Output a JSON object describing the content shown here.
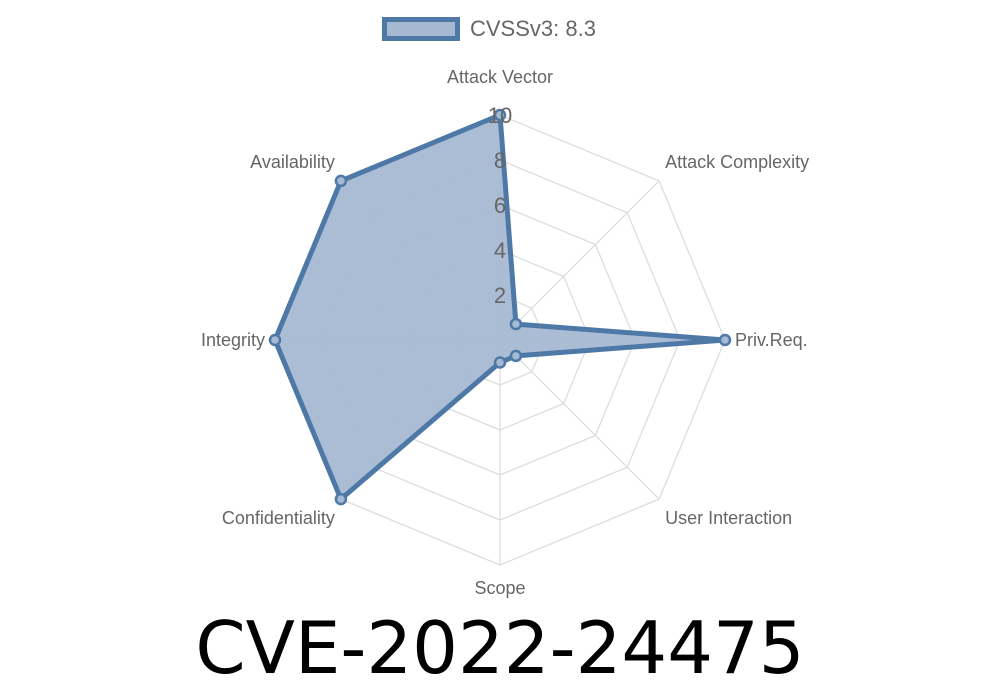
{
  "chart_data": {
    "type": "radar",
    "title": "CVE-2022-24475",
    "axes": [
      "Attack Vector",
      "Attack Complexity",
      "Priv.Req.",
      "User Interaction",
      "Scope",
      "Confidentiality",
      "Integrity",
      "Availability"
    ],
    "series": [
      {
        "name": "CVSSv3: 8.3",
        "values": [
          10,
          1,
          10,
          1,
          1,
          10,
          10,
          10
        ]
      }
    ],
    "rlim": [
      0,
      10
    ],
    "ticks": [
      "2",
      "4",
      "6",
      "8",
      "10"
    ],
    "legend": "top",
    "colors": {
      "line": "#4e79a7",
      "fill": "#a6b9d3",
      "grid": "#dddddd"
    }
  }
}
